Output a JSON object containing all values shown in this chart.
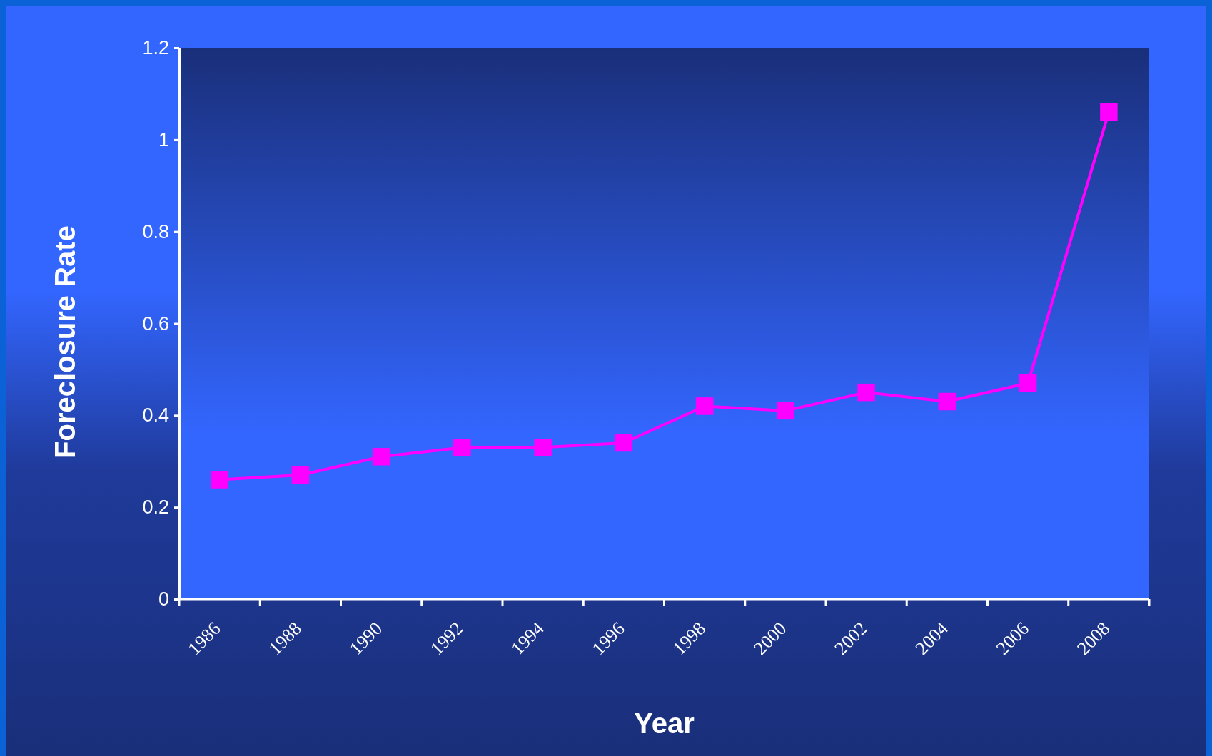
{
  "chart_data": {
    "type": "line",
    "xlabel": "Year",
    "ylabel": "Foreclosure Rate",
    "categories": [
      "1986",
      "1988",
      "1990",
      "1992",
      "1994",
      "1996",
      "1998",
      "2000",
      "2002",
      "2004",
      "2006",
      "2008"
    ],
    "series": [
      {
        "color": "#ff00ff",
        "values": [
          0.26,
          0.27,
          0.31,
          0.33,
          0.33,
          0.34,
          0.42,
          0.41,
          0.45,
          0.43,
          0.47,
          1.06
        ]
      }
    ],
    "ylim": [
      0,
      1.2
    ],
    "yticks": [
      0,
      0.2,
      0.4,
      0.6,
      0.8,
      1,
      1.2
    ],
    "grid": false,
    "marker": "square",
    "line_style": "solid"
  }
}
